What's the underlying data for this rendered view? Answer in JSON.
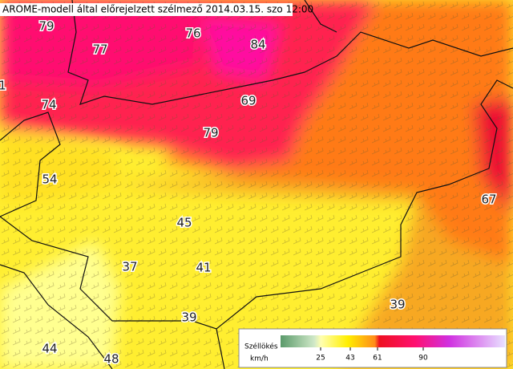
{
  "title": "AROME-modell által előrejelzett szélmező 2014.03.15. szo 12:00",
  "labels": [
    79,
    76,
    77,
    84,
    1,
    74,
    69,
    79,
    54,
    45,
    37,
    41,
    67,
    39,
    39,
    44,
    48
  ],
  "legend": {
    "title": "Széllökés",
    "unit": "km/h",
    "ticks": [
      25,
      43,
      61,
      90
    ]
  }
}
